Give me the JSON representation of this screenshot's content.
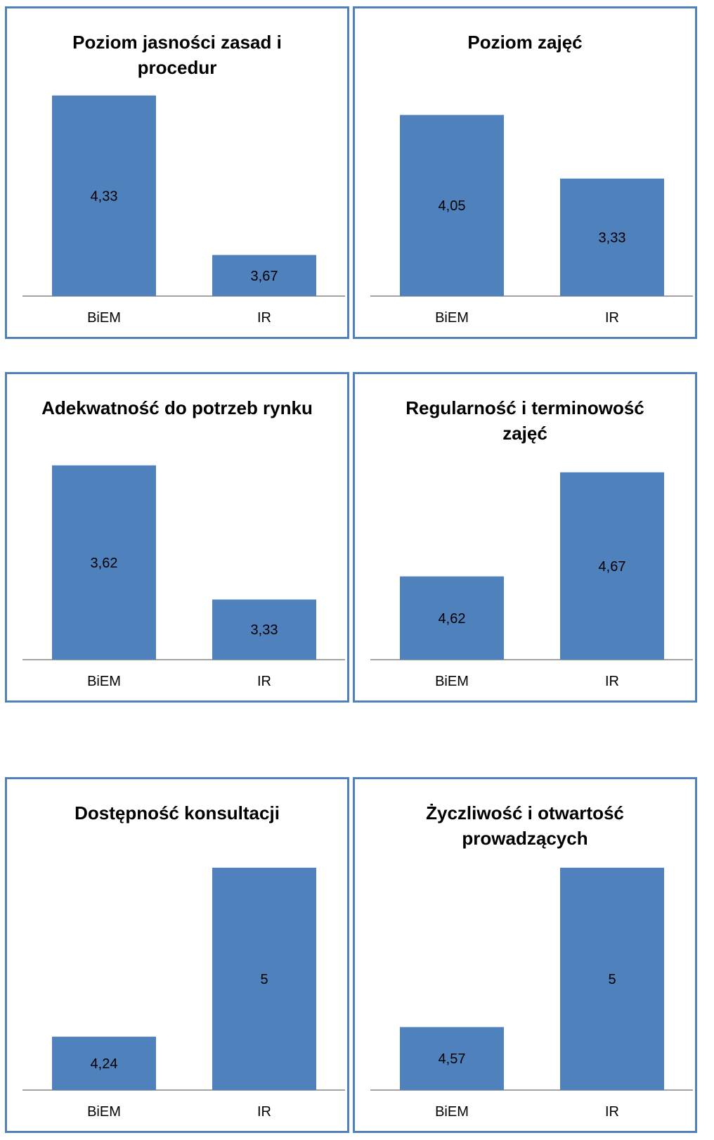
{
  "colors": {
    "bar": "#4F81BD",
    "border": "#4F81BD",
    "axis": "#868686",
    "text": "#000000"
  },
  "chart_data": [
    {
      "type": "bar",
      "title": "Poziom jasności zasad i procedur",
      "categories": [
        "BiEM",
        "IR"
      ],
      "values": [
        "4,33",
        "3,67"
      ],
      "values_numeric": [
        4.33,
        3.67
      ],
      "ylim": [
        3.5,
        4.37
      ],
      "grid": false,
      "legend": "none"
    },
    {
      "type": "bar",
      "title": "Poziom zajęć",
      "categories": [
        "BiEM",
        "IR"
      ],
      "values": [
        "4,05",
        "3,33"
      ],
      "values_numeric": [
        4.05,
        3.33
      ],
      "ylim": [
        2.0,
        4.38
      ],
      "grid": false,
      "legend": "none"
    },
    {
      "type": "bar",
      "title": "Adekwatność do potrzeb rynku",
      "categories": [
        "BiEM",
        "IR"
      ],
      "values": [
        "3,62",
        "3,33"
      ],
      "values_numeric": [
        3.62,
        3.33
      ],
      "ylim": [
        3.2,
        3.65
      ],
      "grid": false,
      "legend": "none"
    },
    {
      "type": "bar",
      "title": "Regularność i terminowość zajęć",
      "categories": [
        "BiEM",
        "IR"
      ],
      "values": [
        "4,62",
        "4,67"
      ],
      "values_numeric": [
        4.62,
        4.67
      ],
      "ylim": [
        4.58,
        4.68
      ],
      "grid": false,
      "legend": "none"
    },
    {
      "type": "bar",
      "title": "Dostępność konsultacji",
      "categories": [
        "BiEM",
        "IR"
      ],
      "values": [
        "4,24",
        "5"
      ],
      "values_numeric": [
        4.24,
        5
      ],
      "ylim": [
        4.0,
        5.05
      ],
      "grid": false,
      "legend": "none"
    },
    {
      "type": "bar",
      "title": "Życzliwość i otwartość prowadzących",
      "categories": [
        "BiEM",
        "IR"
      ],
      "values": [
        "4,57",
        "5"
      ],
      "values_numeric": [
        4.57,
        5
      ],
      "ylim": [
        4.4,
        5.03
      ],
      "grid": false,
      "legend": "none"
    }
  ]
}
